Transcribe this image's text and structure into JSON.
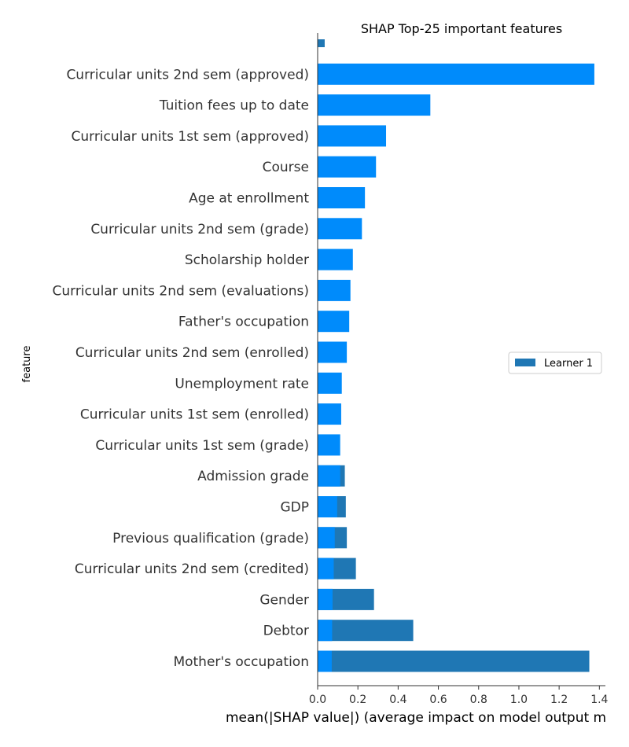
{
  "chart_data": {
    "type": "bar",
    "orientation": "horizontal",
    "title": "SHAP Top-25 important features",
    "xlabel": "mean(|SHAP value|) (average impact on model output m",
    "ylabel": "feature",
    "xlim": [
      0,
      1.43
    ],
    "x_ticks": [
      "0.0",
      "0.2",
      "0.4",
      "0.6",
      "0.8",
      "1.0",
      "1.2",
      "1.4"
    ],
    "grid": false,
    "legend_position": "right",
    "categories": [
      "",
      "Curricular units 2nd sem (approved)",
      "Tuition fees up to date",
      "Curricular units 1st sem (approved)",
      "Course",
      "Age at enrollment",
      "Curricular units 2nd sem (grade)",
      "Scholarship holder",
      "Curricular units 2nd sem (evaluations)",
      "Father's occupation",
      "Curricular units 2nd sem (enrolled)",
      "Unemployment rate",
      "Curricular units 1st sem (enrolled)",
      "Curricular units 1st sem (grade)",
      "Admission grade",
      "GDP",
      "Previous qualification (grade)",
      "Curricular units 2nd sem (credited)",
      "Gender",
      "Debtor",
      "Mother's occupation"
    ],
    "series": [
      {
        "name": "Learner 1",
        "color": "#1f77b4",
        "values": [
          0.035,
          0,
          0,
          0,
          0,
          0,
          0,
          0,
          0,
          0,
          0,
          0,
          0,
          0,
          0.135,
          0.14,
          0.145,
          0.19,
          0.28,
          0.475,
          1.35
        ]
      },
      {
        "name": "",
        "color": "#008bfb",
        "values": [
          0,
          1.375,
          0.56,
          0.34,
          0.29,
          0.235,
          0.22,
          0.175,
          0.163,
          0.157,
          0.145,
          0.12,
          0.117,
          0.112,
          0.112,
          0.097,
          0.085,
          0.08,
          0.074,
          0.072,
          0.07
        ]
      }
    ]
  }
}
